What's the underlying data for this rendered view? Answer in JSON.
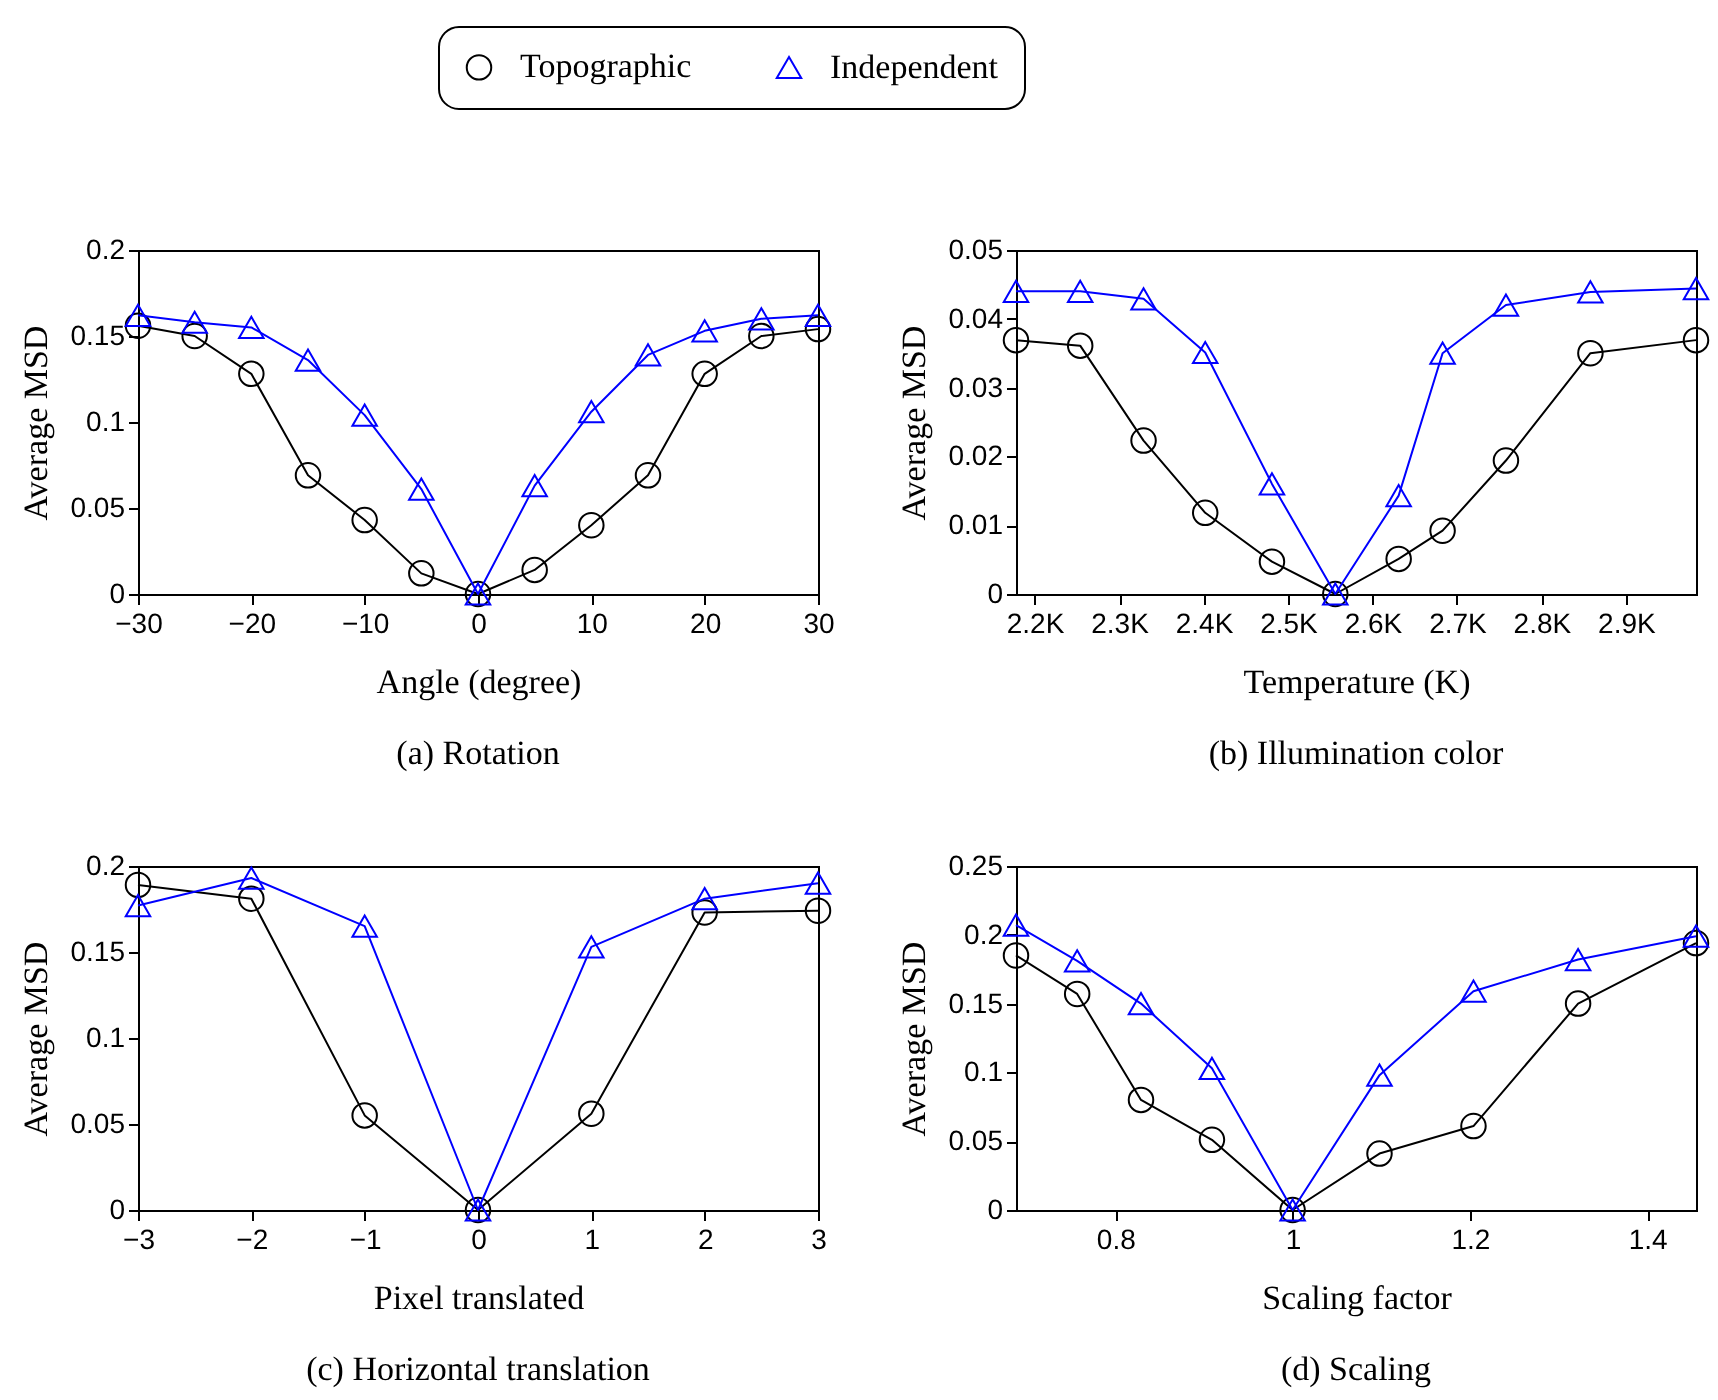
{
  "chart_data": [
    {
      "type": "line",
      "xlabel": "Angle (degree)",
      "ylabel": "Average MSD",
      "annotations": [
        "(a)  Rotation"
      ],
      "legend": "top",
      "grid": false,
      "x": [
        -30,
        -25,
        -20,
        -15,
        -10,
        -5,
        0,
        5,
        10,
        15,
        20,
        25,
        30
      ],
      "xlim": [
        -30,
        30
      ],
      "xticks": [
        -30,
        -20,
        -10,
        0,
        10,
        20,
        30
      ],
      "ylim": [
        0,
        0.2
      ],
      "yticks": [
        0,
        0.05,
        0.1,
        0.15,
        0.2
      ],
      "series": [
        {
          "name": "Topographic",
          "color": "#000000",
          "marker": "circle",
          "values": [
            0.156,
            0.15,
            0.128,
            0.069,
            0.043,
            0.012,
            0,
            0.014,
            0.04,
            0.069,
            0.128,
            0.15,
            0.154
          ]
        },
        {
          "name": "Independent",
          "color": "#0000ff",
          "marker": "triangle",
          "values": [
            0.162,
            0.158,
            0.155,
            0.136,
            0.104,
            0.061,
            0,
            0.063,
            0.106,
            0.139,
            0.153,
            0.16,
            0.162
          ]
        }
      ]
    },
    {
      "type": "line",
      "xlabel": "Temperature (K)",
      "ylabel": "Average MSD",
      "annotations": [
        "(b)  Illumination color"
      ],
      "grid": false,
      "x": [
        2178,
        2254,
        2329,
        2402,
        2481,
        2556,
        2631,
        2683,
        2758,
        2858,
        2983
      ],
      "xlim": [
        2178,
        2983
      ],
      "xticks": [
        {
          "value": 2200,
          "label": "2.2K"
        },
        {
          "value": 2300,
          "label": "2.3K"
        },
        {
          "value": 2400,
          "label": "2.4K"
        },
        {
          "value": 2500,
          "label": "2.5K"
        },
        {
          "value": 2600,
          "label": "2.6K"
        },
        {
          "value": 2700,
          "label": "2.7K"
        },
        {
          "value": 2800,
          "label": "2.8K"
        },
        {
          "value": 2900,
          "label": "2.9K"
        }
      ],
      "ylim": [
        0,
        0.05
      ],
      "yticks": [
        0,
        0.01,
        0.02,
        0.03,
        0.04,
        0.05
      ],
      "series": [
        {
          "color": "#000000",
          "marker": "circle",
          "values": [
            0.0369,
            0.0361,
            0.0223,
            0.0118,
            0.0047,
            0,
            0.0051,
            0.0092,
            0.0194,
            0.035,
            0.0369
          ]
        },
        {
          "color": "#0000ff",
          "marker": "triangle",
          "values": [
            0.044,
            0.044,
            0.0429,
            0.0351,
            0.016,
            0,
            0.0143,
            0.035,
            0.042,
            0.0439,
            0.0444
          ]
        }
      ]
    },
    {
      "type": "line",
      "xlabel": "Pixel translated",
      "ylabel": "Average MSD",
      "annotations": [
        "(c)  Horizontal translation"
      ],
      "grid": false,
      "x": [
        -3,
        -2,
        -1,
        0,
        1,
        2,
        3
      ],
      "xlim": [
        -3,
        3
      ],
      "xticks": [
        -3,
        -2,
        -1,
        0,
        1,
        2,
        3
      ],
      "ylim": [
        0,
        0.2
      ],
      "yticks": [
        0,
        0.05,
        0.1,
        0.15,
        0.2
      ],
      "series": [
        {
          "color": "#000000",
          "marker": "circle",
          "values": [
            0.189,
            0.181,
            0.055,
            0,
            0.056,
            0.173,
            0.174
          ]
        },
        {
          "color": "#0000ff",
          "marker": "triangle",
          "values": [
            0.177,
            0.193,
            0.165,
            0,
            0.153,
            0.181,
            0.19
          ]
        }
      ]
    },
    {
      "type": "line",
      "xlabel": "Scaling factor",
      "ylabel": "Average MSD",
      "annotations": [
        "(d)  Scaling"
      ],
      "grid": false,
      "x": [
        0.688,
        0.757,
        0.829,
        0.909,
        1.0,
        1.098,
        1.204,
        1.322,
        1.455
      ],
      "xlim": [
        0.688,
        1.455
      ],
      "xticks": [
        0.8,
        1,
        1.2,
        1.4
      ],
      "ylim": [
        0,
        0.25
      ],
      "yticks": [
        0,
        0.05,
        0.1,
        0.15,
        0.2,
        0.25
      ],
      "series": [
        {
          "color": "#000000",
          "marker": "circle",
          "values": [
            0.185,
            0.157,
            0.08,
            0.051,
            0,
            0.041,
            0.061,
            0.15,
            0.194
          ]
        },
        {
          "color": "#0000ff",
          "marker": "triangle",
          "values": [
            0.207,
            0.181,
            0.15,
            0.103,
            0,
            0.098,
            0.159,
            0.182,
            0.199
          ]
        }
      ]
    }
  ]
}
